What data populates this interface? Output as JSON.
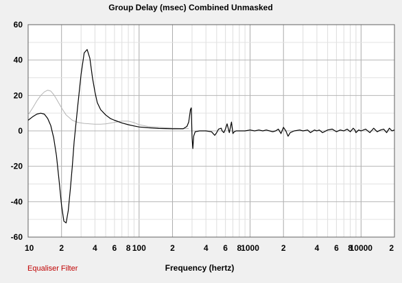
{
  "window": {
    "title": "Group Delay (msec)    Combined    Unmasked",
    "footer_left": "Equaliser Filter",
    "footer_left_color": "#c00000",
    "background": "#f0f0f0",
    "plot_background": "#ffffff"
  },
  "chart_data": {
    "type": "line",
    "title": "Group Delay (msec)    Combined    Unmasked",
    "xlabel": "Frequency (hertz)",
    "ylabel": "",
    "xscale": "log",
    "xlim": [
      10,
      20000
    ],
    "ylim": [
      -60,
      60
    ],
    "grid": true,
    "y_ticks": [
      60,
      40,
      20,
      0,
      -20,
      -40,
      -60
    ],
    "x_tick_labels": [
      {
        "value": 10,
        "label": "10"
      },
      {
        "value": 20,
        "label": "2"
      },
      {
        "value": 40,
        "label": "4"
      },
      {
        "value": 60,
        "label": "6"
      },
      {
        "value": 80,
        "label": "8"
      },
      {
        "value": 100,
        "label": "100"
      },
      {
        "value": 200,
        "label": "2"
      },
      {
        "value": 400,
        "label": "4"
      },
      {
        "value": 600,
        "label": "6"
      },
      {
        "value": 800,
        "label": "8"
      },
      {
        "value": 1000,
        "label": "1000"
      },
      {
        "value": 2000,
        "label": "2"
      },
      {
        "value": 4000,
        "label": "4"
      },
      {
        "value": 6000,
        "label": "6"
      },
      {
        "value": 8000,
        "label": "8"
      },
      {
        "value": 10000,
        "label": "10000"
      },
      {
        "value": 20000,
        "label": "2"
      }
    ],
    "series": [
      {
        "color": "#b4b4b4",
        "x": [
          10,
          11,
          12,
          13,
          14,
          15,
          16,
          17,
          18,
          20,
          22,
          25,
          28,
          32,
          36,
          40,
          45,
          50,
          55,
          60,
          70,
          80,
          90,
          100,
          120,
          150,
          200,
          250,
          280
        ],
        "y": [
          9,
          13,
          17,
          20,
          22,
          23,
          22.5,
          20.5,
          18,
          13,
          9,
          6,
          4.8,
          4.2,
          4,
          3.8,
          3.8,
          4,
          4.4,
          4.8,
          5.5,
          5.5,
          4.7,
          3.5,
          2.5,
          2,
          1.5,
          1.3,
          1.3
        ]
      },
      {
        "color": "#000000",
        "x": [
          10,
          11,
          12,
          13,
          14,
          15,
          16,
          17,
          18,
          19,
          20,
          21,
          22,
          23,
          24,
          25,
          26,
          28,
          30,
          32,
          34,
          36,
          38,
          40,
          42,
          45,
          50,
          55,
          60,
          70,
          80,
          90,
          100,
          120,
          150,
          200,
          250,
          270,
          280,
          290,
          295,
          300,
          305,
          310,
          320,
          350,
          400,
          450,
          480,
          500,
          520,
          550,
          560,
          580,
          600,
          620,
          650,
          680,
          700,
          720,
          750,
          800,
          900,
          1000,
          1100,
          1200,
          1300,
          1400,
          1500,
          1600,
          1700,
          1800,
          1900,
          2000,
          2100,
          2200,
          2300,
          2500,
          2800,
          3000,
          3300,
          3500,
          3700,
          3800,
          4000,
          4200,
          4500,
          5000,
          5500,
          6000,
          6500,
          7000,
          7500,
          8000,
          8500,
          8800,
          9000,
          9500,
          10000,
          11000,
          12000,
          13000,
          14000,
          15000,
          16000,
          17000,
          18000,
          19000,
          20000
        ],
        "y": [
          6,
          8,
          9.5,
          10,
          9.5,
          7,
          3,
          -4,
          -14,
          -28,
          -42,
          -51,
          -52,
          -45,
          -33,
          -20,
          -6,
          14,
          32,
          44,
          46,
          41,
          30,
          22,
          16,
          12,
          9,
          7,
          6,
          4.5,
          3.5,
          2.8,
          2.2,
          1.8,
          1.4,
          1.2,
          1.2,
          2.5,
          5,
          12,
          13,
          -4,
          -10,
          -3,
          -0.5,
          0,
          0,
          -0.5,
          -2.5,
          -1,
          1,
          1.5,
          0,
          -1,
          1,
          4,
          -1,
          5,
          -1.5,
          -0.5,
          0,
          0,
          0,
          0.5,
          0,
          0.5,
          0,
          0.5,
          0,
          -0.5,
          0,
          1,
          -1.5,
          2,
          0,
          -3,
          -1,
          0,
          0.5,
          0,
          0.5,
          -1,
          0,
          0.5,
          0,
          0.5,
          -1,
          0.5,
          1,
          -0.5,
          0.5,
          0,
          1,
          -0.5,
          1.5,
          0.5,
          -1,
          0.5,
          0,
          1,
          -1,
          1.5,
          -0.5,
          0.5,
          1,
          -1,
          1.5,
          0,
          0.5
        ]
      }
    ]
  }
}
